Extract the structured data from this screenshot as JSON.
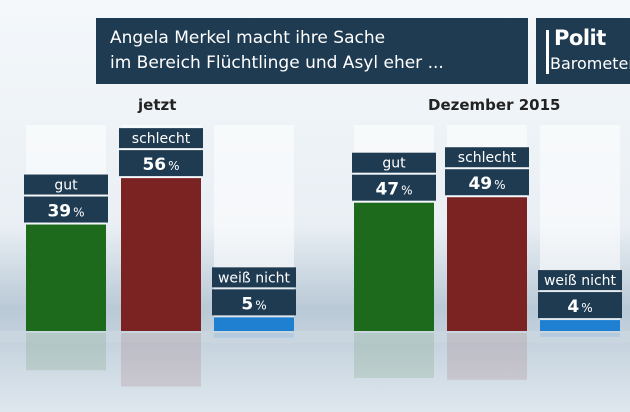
{
  "header": {
    "line1": "Angela Merkel macht ihre Sache",
    "line2": "im Bereich Flüchtlinge und Asyl eher ..."
  },
  "logo": {
    "line1": "Polit",
    "line2": "Barometer"
  },
  "colors": {
    "gut": "#1e6a1c",
    "schlecht": "#7b2323",
    "weiss_nicht": "#1f7fd1",
    "label_bg": "#1f3b52"
  },
  "chart_data": {
    "type": "bar",
    "categories": [
      "gut",
      "schlecht",
      "weiß nicht"
    ],
    "series": [
      {
        "name": "jetzt",
        "values": [
          39,
          56,
          5
        ]
      },
      {
        "name": "Dezember 2015",
        "values": [
          47,
          49,
          4
        ]
      }
    ],
    "value_suffix": "%",
    "ylim": [
      0,
      100
    ],
    "grid": false
  }
}
